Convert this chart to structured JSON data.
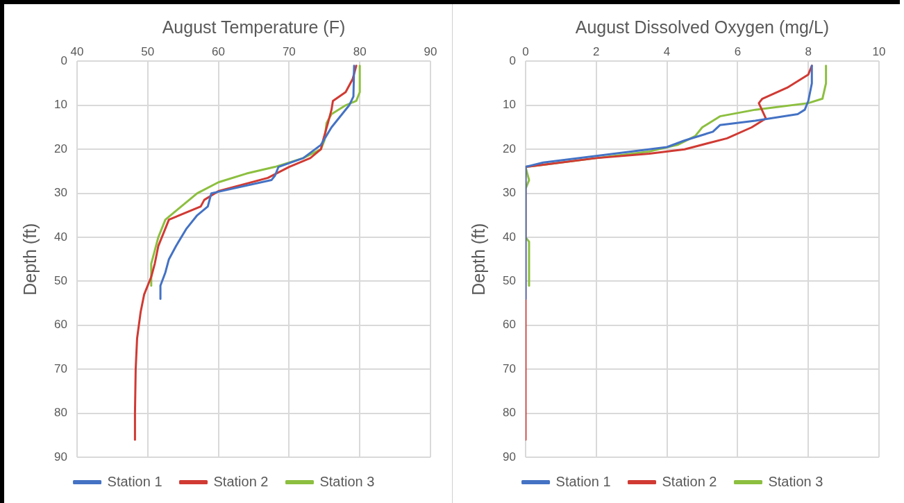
{
  "chart_data": [
    {
      "type": "line",
      "title": "August Temperature (F)",
      "ylabel": "Depth (ft)",
      "xlim": [
        40,
        90
      ],
      "xticks": [
        40,
        50,
        60,
        70,
        80,
        90
      ],
      "ylim": [
        90,
        0
      ],
      "yticks": [
        0,
        10,
        20,
        30,
        40,
        50,
        60,
        70,
        80,
        90
      ],
      "grid": true,
      "legend": "bottom",
      "marker": "none",
      "series": [
        {
          "name": "Station 1",
          "color": "#4472c4",
          "x": [
            79.2,
            79.1,
            78.5,
            76,
            74.5,
            72,
            68.5,
            68,
            67.5,
            59,
            58.5,
            57,
            55.5,
            54,
            53,
            52.5,
            51.8,
            51.8
          ],
          "values": [
            1,
            8,
            10,
            15,
            19,
            22,
            24,
            26,
            27,
            30,
            33,
            35,
            38,
            42,
            45,
            48,
            51,
            54
          ]
        },
        {
          "name": "Station 2",
          "color": "#d03a33",
          "x": [
            79.5,
            79,
            78,
            76.2,
            76,
            75.5,
            74.8,
            74.5,
            73,
            70,
            67,
            60,
            58,
            57.5,
            53,
            52.5,
            51.5,
            51,
            50.5,
            49.5,
            49,
            48.5,
            48.3,
            48.2,
            48.2
          ],
          "values": [
            1,
            4,
            7,
            9,
            11,
            14,
            18,
            20,
            22,
            24,
            26.5,
            29.5,
            31.5,
            33,
            36,
            38,
            42,
            46,
            49,
            53,
            57,
            63,
            70,
            80,
            86
          ]
        },
        {
          "name": "Station 3",
          "color": "#8cbf3f",
          "x": [
            80,
            80,
            79.5,
            78,
            76,
            75.3,
            75,
            74.5,
            72,
            68,
            64,
            60,
            57,
            54,
            52.5,
            51.5,
            51,
            50.5,
            50.5
          ],
          "values": [
            1,
            7,
            9,
            10,
            12,
            14,
            18,
            20,
            22,
            24,
            25.5,
            27.5,
            30,
            34,
            36,
            40,
            43,
            46,
            51
          ]
        }
      ]
    },
    {
      "type": "line",
      "title": "August Dissolved Oxygen (mg/L)",
      "ylabel": "Depth (ft)",
      "xlim": [
        0,
        10
      ],
      "xticks": [
        0,
        2,
        4,
        6,
        8,
        10
      ],
      "ylim": [
        90,
        0
      ],
      "yticks": [
        0,
        10,
        20,
        30,
        40,
        50,
        60,
        70,
        80,
        90
      ],
      "grid": true,
      "legend": "bottom",
      "marker": "none",
      "series": [
        {
          "name": "Station 1",
          "color": "#4472c4",
          "x": [
            8.1,
            8.1,
            8,
            7.9,
            7.7,
            6.5,
            5.5,
            5.3,
            4.5,
            4,
            2,
            0.5,
            0,
            0
          ],
          "values": [
            1,
            5,
            9,
            11,
            12,
            13.5,
            14.5,
            16,
            18,
            19.5,
            21.5,
            23,
            24,
            54
          ]
        },
        {
          "name": "Station 2",
          "color": "#d03a33",
          "x": [
            8.1,
            8,
            7.4,
            6.7,
            6.6,
            6.8,
            6.4,
            5.7,
            4.5,
            3.5,
            2,
            0.5,
            0,
            0
          ],
          "values": [
            1,
            3,
            6,
            8.5,
            9.5,
            13,
            15,
            17.5,
            20,
            21,
            22,
            23.5,
            24,
            86
          ]
        },
        {
          "name": "Station 3",
          "color": "#8cbf3f",
          "x": [
            8.5,
            8.5,
            8.4,
            8,
            6.5,
            5.5,
            5,
            4.8,
            4.3,
            3.5,
            2,
            0.5,
            0,
            0.1,
            0,
            0,
            0.1,
            0.1
          ],
          "values": [
            1,
            5,
            8.5,
            9.5,
            11,
            12.5,
            15,
            17,
            19,
            20.5,
            22,
            23.5,
            24,
            27,
            29,
            40,
            41,
            51
          ]
        }
      ]
    }
  ]
}
